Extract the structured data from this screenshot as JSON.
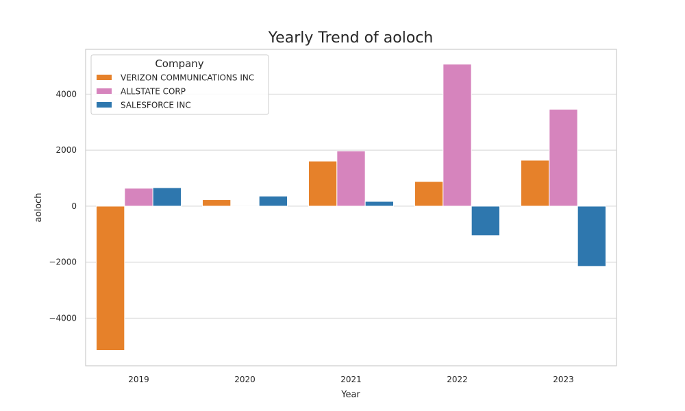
{
  "chart_data": {
    "type": "bar",
    "title": "Yearly Trend of aoloch",
    "xlabel": "Year",
    "ylabel": "aoloch",
    "categories": [
      "2019",
      "2020",
      "2021",
      "2022",
      "2023"
    ],
    "ylim": [
      -5700,
      5600
    ],
    "yticks": [
      -4000,
      -2000,
      0,
      2000,
      4000
    ],
    "ytick_labels": [
      "−4000",
      "−2000",
      "0",
      "2000",
      "4000"
    ],
    "grid": true,
    "legend": {
      "title": "Company",
      "placement": "top-left"
    },
    "series": [
      {
        "name": "VERIZON COMMUNICATIONS INC",
        "color": "#e6812a",
        "values": [
          -5150,
          230,
          1610,
          880,
          1640
        ]
      },
      {
        "name": "ALLSTATE CORP",
        "color": "#d684bd",
        "values": [
          640,
          0,
          1970,
          5070,
          3460
        ]
      },
      {
        "name": "SALESFORCE INC",
        "color": "#2e77ae",
        "values": [
          660,
          360,
          170,
          -1050,
          -2150
        ]
      }
    ]
  }
}
